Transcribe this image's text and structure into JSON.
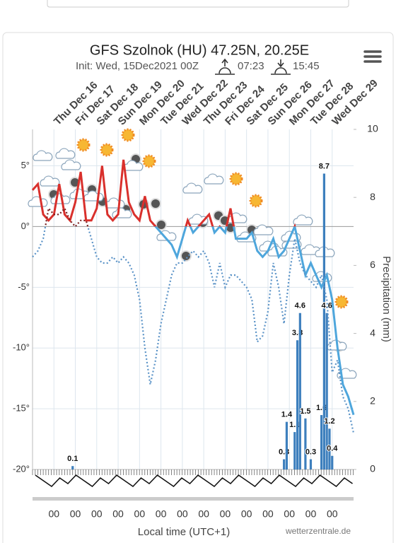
{
  "header": {
    "title": "GFS Szolnok (HU) 47.25N, 20.25E",
    "init": "Init: Wed, 15Dec2021 00Z",
    "sunrise": "07:23",
    "sunset": "15:45"
  },
  "chart_data": {
    "type": "line",
    "day_labels": [
      "Thu Dec 16",
      "Fri Dec 17",
      "Sat Dec 18",
      "Sun Dec 19",
      "Mon Dec 20",
      "Tue Dec 21",
      "Wed Dec 22",
      "Thu Dec 23",
      "Fri Dec 24",
      "Sat Dec 25",
      "Sun Dec 26",
      "Mon Dec 27",
      "Tue Dec 28",
      "Wed Dec 29"
    ],
    "time_labels": [
      "00",
      "00",
      "00",
      "00",
      "00",
      "00",
      "00",
      "00",
      "00",
      "00",
      "00",
      "00",
      "00",
      "00"
    ],
    "xlabel": "Local time (UTC+1)",
    "y2label": "Precipitation (mm)",
    "source": "wetterzentrale.de",
    "ylim": [
      -20,
      8
    ],
    "yticks": [
      {
        "value": -20,
        "label": "-20°"
      },
      {
        "value": -15,
        "label": "-15°"
      },
      {
        "value": -10,
        "label": "-10°"
      },
      {
        "value": -5,
        "label": "-5°"
      },
      {
        "value": 0,
        "label": "0°"
      },
      {
        "value": 5,
        "label": "5°"
      }
    ],
    "y2lim": [
      0,
      10
    ],
    "y2ticks": [
      0,
      2,
      4,
      6,
      8,
      10
    ],
    "grid": true,
    "series": [
      {
        "type": "line",
        "style": "solid",
        "color": "#d9302c",
        "color_below": "#4ea6dc",
        "values": [
          3,
          3.5,
          1,
          0.5,
          1,
          3.5,
          1,
          0.5,
          2,
          4.5,
          0.5,
          0.5,
          1.5,
          5,
          1,
          0.5,
          1,
          5.5,
          2,
          1,
          0.5,
          2.5,
          0.5,
          0,
          -0.5,
          -1,
          -1.5,
          -2.5,
          -1,
          0.5,
          -0.5,
          0,
          0.5,
          1,
          -0.5,
          0,
          -0.5,
          1.5,
          -1,
          -1,
          -1,
          -0.5,
          -2,
          -2.5,
          -2,
          -1,
          -2.5,
          -2,
          -1,
          0,
          -2,
          -4,
          -3,
          -4,
          -5,
          -4,
          -6,
          -10,
          -13,
          -14,
          -15.5
        ]
      },
      {
        "type": "line",
        "style": "dotted",
        "color": "#7a1f1f",
        "color_below": "#5b93c7",
        "values": [
          -2.5,
          -2,
          -1,
          1.5,
          1,
          1,
          1.5,
          0.5,
          0,
          0.5,
          0.5,
          -1,
          -2.5,
          -3,
          -3,
          -2.5,
          -3,
          -2.5,
          -3,
          -4,
          -6,
          -10,
          -13,
          -11,
          -8,
          -6,
          -4,
          -3,
          -3,
          -2.5,
          -2,
          -2.5,
          -2,
          -3,
          -5,
          -3,
          -5,
          -4,
          -4,
          -4.5,
          -5,
          -6,
          -9.5,
          -9,
          -7,
          -3,
          -5,
          -8,
          -4,
          -1,
          -3,
          -4,
          -4.5,
          -5,
          -4,
          -6,
          -12,
          -11,
          -14,
          -15,
          -17
        ]
      },
      {
        "type": "bar",
        "axis": "y2",
        "color": "#3d7fbd",
        "values": [
          0,
          0,
          0,
          0,
          0,
          0,
          0,
          0,
          0,
          0,
          0,
          0,
          0,
          0,
          0,
          0.1,
          0,
          0,
          0,
          0,
          0,
          0,
          0,
          0,
          0,
          0,
          0,
          0,
          0,
          0,
          0,
          0,
          0,
          0,
          0,
          0,
          0,
          0,
          0,
          0,
          0,
          0,
          0,
          0,
          0,
          0,
          0,
          0,
          0,
          0,
          0,
          0,
          0,
          0,
          0,
          0,
          0,
          0,
          0,
          0,
          0,
          0,
          0,
          0,
          0,
          0,
          0,
          0,
          0,
          0,
          0,
          0,
          0,
          0,
          0,
          0,
          0,
          0,
          0,
          0,
          0,
          0,
          0,
          0,
          0,
          0,
          0,
          0,
          0,
          0,
          0,
          0,
          0,
          0,
          0.3,
          1.4,
          0,
          0,
          1.1,
          3.8,
          4.6,
          0,
          1.5,
          0,
          0.3,
          0,
          0,
          0,
          1.6,
          8.7,
          4.6,
          1.2,
          0.4,
          0,
          0,
          0,
          0,
          0,
          0,
          0,
          0
        ]
      }
    ]
  }
}
